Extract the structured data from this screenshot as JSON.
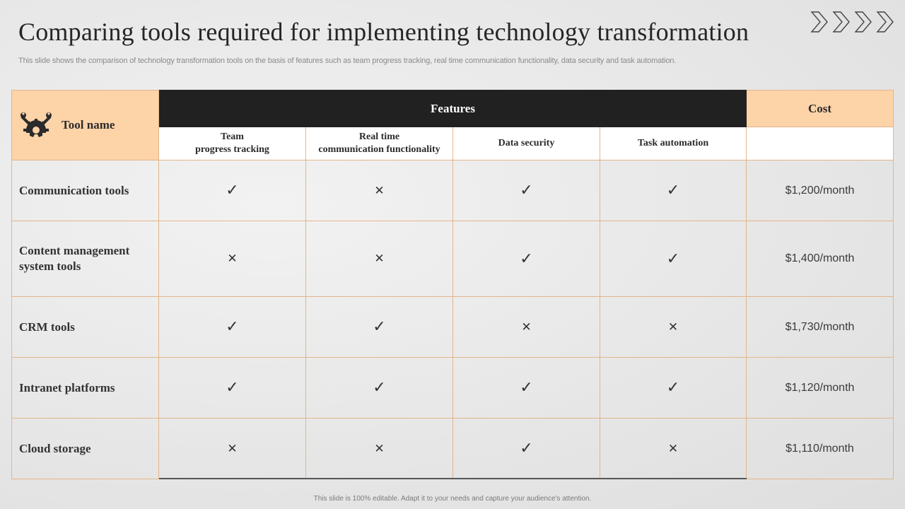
{
  "title": "Comparing tools required for implementing technology transformation",
  "subtitle": "This slide shows the comparison of technology transformation tools on the basis of features such as team progress tracking, real time communication functionality, data security and task automation.",
  "footer": "This slide is 100% editable. Adapt it to your needs and capture your audience's attention.",
  "table": {
    "tool_header": "Tool name",
    "features_header": "Features",
    "cost_header": "Cost",
    "feature_columns": [
      "Team\nprogress tracking",
      "Real time\ncommunication functionality",
      "Data security",
      "Task automation"
    ],
    "rows": [
      {
        "name": "Communication tools",
        "marks": [
          "check",
          "cross",
          "check",
          "check"
        ],
        "cost": "$1,200/month"
      },
      {
        "name": "Content management system tools",
        "marks": [
          "cross",
          "cross",
          "check",
          "check"
        ],
        "cost": "$1,400/month"
      },
      {
        "name": "CRM tools",
        "marks": [
          "check",
          "check",
          "cross",
          "cross"
        ],
        "cost": "$1,730/month"
      },
      {
        "name": "Intranet platforms",
        "marks": [
          "check",
          "check",
          "check",
          "check"
        ],
        "cost": "$1,120/month"
      },
      {
        "name": "Cloud storage",
        "marks": [
          "cross",
          "cross",
          "check",
          "cross"
        ],
        "cost": "$1,110/month"
      }
    ]
  },
  "icons": {
    "tool_header_icon": "tools-gear-icon",
    "check": "check-icon",
    "cross": "cross-icon",
    "deco": "chevron-right-icon"
  },
  "colors": {
    "peach": "#fdd3a8",
    "black": "#212121",
    "border": "#e3b58a"
  }
}
